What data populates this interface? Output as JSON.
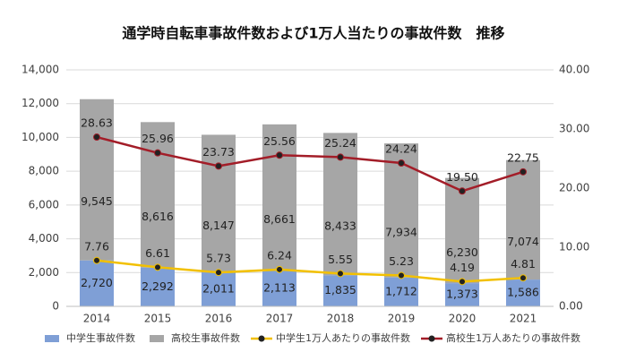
{
  "chart_data": {
    "type": "bar",
    "title": "通学時自転車事故件数および1万人当たりの事故件数　推移",
    "categories": [
      "2014",
      "2015",
      "2016",
      "2017",
      "2018",
      "2019",
      "2020",
      "2021"
    ],
    "stacked": true,
    "series": [
      {
        "name": "中学生事故件数",
        "type": "bar",
        "color": "#7f9fd6",
        "values": [
          2720,
          2292,
          2011,
          2113,
          1835,
          1712,
          1373,
          1586
        ],
        "value_labels": [
          "2,720",
          "2,292",
          "2,011",
          "2,113",
          "1,835",
          "1,712",
          "1,373",
          "1,586"
        ]
      },
      {
        "name": "高校生事故件数",
        "type": "bar",
        "color": "#a6a6a6",
        "values": [
          9545,
          8616,
          8147,
          8661,
          8433,
          7934,
          6230,
          7074
        ],
        "value_labels": [
          "9,545",
          "8,616",
          "8,147",
          "8,661",
          "8,433",
          "7,934",
          "6,230",
          "7,074"
        ]
      },
      {
        "name": "中学生1万人あたりの事故件数",
        "type": "line",
        "axis": "y2",
        "color": "#f2c000",
        "values": [
          7.76,
          6.61,
          5.73,
          6.24,
          5.55,
          5.23,
          4.19,
          4.81
        ],
        "value_labels": [
          "7.76",
          "6.61",
          "5.73",
          "6.24",
          "5.55",
          "5.23",
          "4.19",
          "4.81"
        ]
      },
      {
        "name": "高校生1万人あたりの事故件数",
        "type": "line",
        "axis": "y2",
        "color": "#a31d28",
        "values": [
          28.63,
          25.96,
          23.73,
          25.56,
          25.24,
          24.24,
          19.5,
          22.75
        ],
        "value_labels": [
          "28.63",
          "25.96",
          "23.73",
          "25.56",
          "25.24",
          "24.24",
          "19.50",
          "22.75"
        ]
      }
    ],
    "ylim": [
      0,
      14000
    ],
    "yticks": [
      0,
      {
        "value": 2000,
        "label": "2,000"
      },
      {
        "value": 4000,
        "label": "4,000"
      },
      {
        "value": 6000,
        "label": "6,000"
      },
      {
        "value": 8000,
        "label": "8,000"
      },
      {
        "value": 10000,
        "label": "10,000"
      },
      {
        "value": 12000,
        "label": "12,000"
      },
      {
        "value": 14000,
        "label": "14,000"
      }
    ],
    "y2lim": [
      0,
      40
    ],
    "y2ticks": [
      {
        "value": 0,
        "label": "0.00"
      },
      {
        "value": 10,
        "label": "10.00"
      },
      {
        "value": 20,
        "label": "20.00"
      },
      {
        "value": 30,
        "label": "30.00"
      },
      {
        "value": 40,
        "label": "40.00"
      }
    ],
    "grid": true,
    "legend": "bottom"
  }
}
